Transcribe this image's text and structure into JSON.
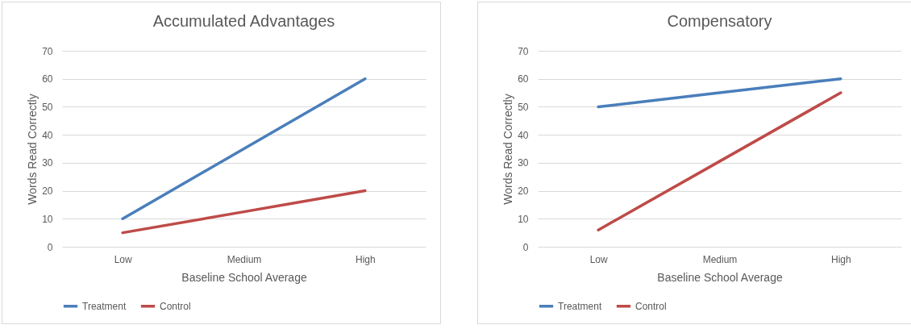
{
  "chart_data": [
    {
      "type": "line",
      "title": "Accumulated Advantages",
      "xlabel": "Baseline School Average",
      "ylabel": "Words Read Correctly",
      "categories": [
        "Low",
        "Medium",
        "High"
      ],
      "series": [
        {
          "name": "Treatment",
          "color": "#4a7ebb",
          "values": [
            10,
            35,
            60
          ]
        },
        {
          "name": "Control",
          "color": "#be4b48",
          "values": [
            5,
            12.5,
            20
          ]
        }
      ],
      "ylim": [
        0,
        70
      ],
      "yticks": [
        0,
        10,
        20,
        30,
        40,
        50,
        60,
        70
      ],
      "grid": "y",
      "legend": "bottom",
      "marker": "none"
    },
    {
      "type": "line",
      "title": "Compensatory",
      "xlabel": "Baseline School Average",
      "ylabel": "Words Read Correctly",
      "categories": [
        "Low",
        "Medium",
        "High"
      ],
      "series": [
        {
          "name": "Treatment",
          "color": "#4a7ebb",
          "values": [
            50,
            55,
            60
          ]
        },
        {
          "name": "Control",
          "color": "#be4b48",
          "values": [
            6,
            30.5,
            55
          ]
        }
      ],
      "ylim": [
        0,
        70
      ],
      "yticks": [
        0,
        10,
        20,
        30,
        40,
        50,
        60,
        70
      ],
      "grid": "y",
      "legend": "bottom",
      "marker": "none"
    }
  ]
}
